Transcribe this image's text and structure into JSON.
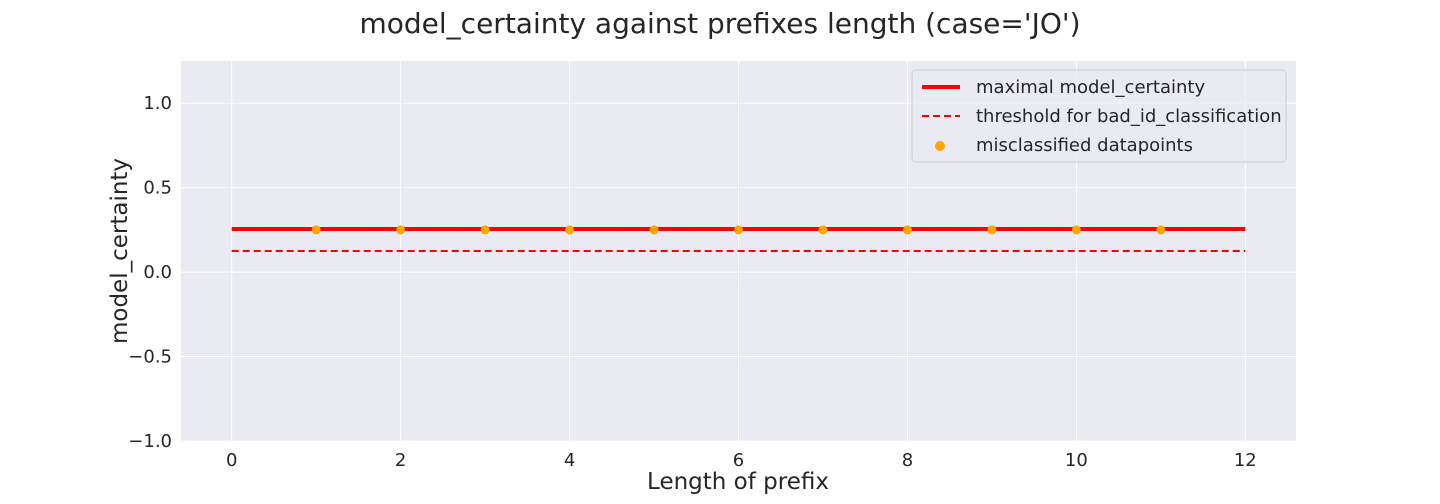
{
  "chart_data": {
    "type": "line",
    "title": "model_certainty against prefixes length (case='JO')",
    "xlabel": "Length of prefix",
    "ylabel": "model_certainty",
    "xlim": [
      -0.6,
      12.6
    ],
    "ylim": [
      -1.0,
      1.25
    ],
    "xticks": [
      0,
      2,
      4,
      6,
      8,
      10,
      12
    ],
    "yticks": [
      -1.0,
      -0.5,
      0.0,
      0.5,
      1.0
    ],
    "xtick_labels": [
      "0",
      "2",
      "4",
      "6",
      "8",
      "10",
      "12"
    ],
    "ytick_labels": [
      "−1.0",
      "−0.5",
      "0.0",
      "0.5",
      "1.0"
    ],
    "grid": true,
    "legend_position": "top-right",
    "series": [
      {
        "name": "maximal model_certainty",
        "kind": "line",
        "style": "solid",
        "color": "#ff0000",
        "x": [
          0,
          12
        ],
        "y": [
          0.255,
          0.255
        ]
      },
      {
        "name": "threshold for bad_id_classification",
        "kind": "line",
        "style": "dashed",
        "color": "#ff0000",
        "x": [
          0,
          12
        ],
        "y": [
          0.125,
          0.125
        ]
      },
      {
        "name": "misclassified datapoints",
        "kind": "scatter",
        "color": "#ffa500",
        "x": [
          1,
          2,
          3,
          4,
          5,
          6,
          7,
          8,
          9,
          10,
          11
        ],
        "y": [
          0.25,
          0.25,
          0.25,
          0.25,
          0.25,
          0.25,
          0.25,
          0.25,
          0.25,
          0.25,
          0.25
        ]
      }
    ]
  },
  "colors": {
    "plot_background": "#eaeaf2",
    "grid": "#ffffff",
    "text": "#262626"
  }
}
